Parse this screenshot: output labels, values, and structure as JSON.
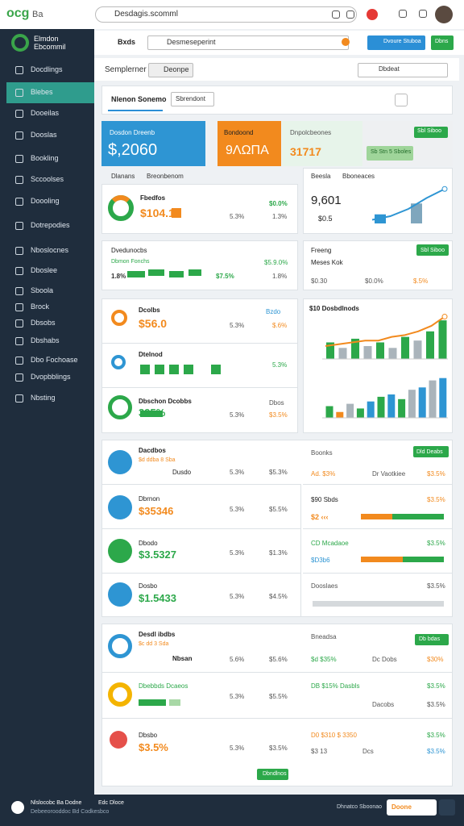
{
  "browser": {
    "logo": "ocg",
    "logo_text": "Ba",
    "url": "Desdagis.scomml"
  },
  "sidebar": {
    "brand": "Elmdon Ebcommil",
    "items": [
      "Docdlings",
      "Blebes",
      "Dooeilas",
      "Dooslas",
      "Bookling",
      "Sccoolses",
      "Doooling",
      "Dotrepodies",
      "Nboslocnes",
      "Dboslee",
      "Sboola",
      "Brock",
      "Dbsobs",
      "Dbshabs",
      "Dbo Fochoase",
      "Dvopbblings",
      "Nbsting"
    ]
  },
  "toolbar": {
    "menu": "Bxds",
    "search": "Desmeseperint",
    "button_blue": "Dvoure Stuboa",
    "button_green": "Dbns"
  },
  "subbar": {
    "title": "Semplerner",
    "button": "Deonpe",
    "search": "Dbdeat"
  },
  "tabs": {
    "active": "Nlenon Sonemo",
    "button": "Sbrendont"
  },
  "kpis": [
    {
      "label": "Dosdon Dreenb",
      "value": "$,2060"
    },
    {
      "label": "Bondoond",
      "value": "9ΛΩΠΑ"
    },
    {
      "label": "Dnpolcbeones",
      "value": "31717"
    },
    {
      "button": "Sbl Siboo",
      "button2": "Sb Stn 5 Sboles"
    }
  ],
  "section1": {
    "left_header": "Dlanans",
    "left_header2": "Breonbenom",
    "right_header": "Beesla",
    "right_header2": "Bboneaces"
  },
  "panel1": {
    "title": "Fbedfos",
    "value": "$104.1",
    "c1": "5.3%",
    "c2": "$0.0%",
    "c3": "1.3%"
  },
  "panel1r": {
    "value": "9,601",
    "sub": "$0.5"
  },
  "panel2": {
    "title": "Dvedunocbs",
    "sub": "Dbmon Fonchs",
    "c1": "$5.9.0%",
    "c2": "1.8%",
    "c3": "$7.5%",
    "c4": "1.8%"
  },
  "panel2r": {
    "title": "Freeng",
    "sub": "Meses Kok",
    "button": "Sbl Siboo",
    "c1": "$0.30",
    "c2": "$0.0%",
    "c3": "$.5%"
  },
  "panel3": {
    "rows": [
      {
        "title": "Dcolbs",
        "value": "$56.0",
        "c1": "5.3%",
        "c2": "$.6%",
        "badge": "Bzdo"
      },
      {
        "title": "Dtelnod",
        "c1": "5.3%"
      },
      {
        "title": "Dbschon Dcobbs",
        "value": "395%",
        "c1": "5.3%",
        "c2": "$3.5%",
        "extra": "Dbos"
      }
    ]
  },
  "panel3r": {
    "title": "$10 Dosbdlnods"
  },
  "panel4": {
    "title": "Dacdbos",
    "sub": "$d ddba 8 Sba",
    "r_title": "Boonks",
    "button": "Dld Deabs",
    "rows": [
      {
        "label": "Dusdo",
        "c1": "5.3%",
        "c2": "$5.3%"
      },
      {
        "title": "Dbrnon",
        "value": "$35346",
        "c1": "5.3%",
        "c2": "$5.5%"
      },
      {
        "title": "Dbodo",
        "value": "$3.5327",
        "c1": "5.3%",
        "c2": "$1.3%"
      },
      {
        "title": "Dosbo",
        "value": "$1.5433",
        "c1": "5.3%",
        "c2": "$4.5%"
      }
    ],
    "right": [
      {
        "a": "Ad. $3%",
        "b": "Dr Vaotkiee",
        "c": "$3.5%"
      },
      {
        "a": "$90 Sbds",
        "b": "$2 ‹‹‹",
        "c": "$3.5%"
      },
      {
        "a": "CD Mcadaoe",
        "b": "$D3b6",
        "c": "$3.5%"
      },
      {
        "a": "Dooslaes",
        "c": "$3.5%"
      }
    ]
  },
  "panel5": {
    "title": "Desdl ibdbs",
    "sub": "$c dd 3 Sda",
    "r_title": "Bneadsa",
    "button": "Db bdas",
    "footer_button": "Dbndlnos",
    "rows": [
      {
        "label": "Nbsan",
        "c1": "5.6%",
        "c2": "$5.6%",
        "a": "$d $35%",
        "b": "Dc Dobs",
        "c": "$30%"
      },
      {
        "title": "Dbebbds Dcaeos",
        "c1": "5.3%",
        "c2": "$5.5%",
        "a": "DB $15% Dasbls",
        "b": "Dacobs",
        "c": "$3.5%",
        "d": "$3.5%"
      },
      {
        "title": "Dbsbo",
        "value": "$3.5%",
        "c1": "5.3%",
        "c2": "$3.5%",
        "a": "D0 $310 $ 3350",
        "b": "$3 13",
        "e": "Dcs",
        "c": "$3.5%",
        "d": "$3.5%"
      }
    ]
  },
  "charts": {
    "a": {
      "bars": [
        10,
        22
      ],
      "line": [
        4,
        8,
        16,
        28,
        38
      ],
      "ylim": [
        0,
        40
      ]
    },
    "b": {
      "bars": [
        18,
        12,
        22,
        14,
        18,
        12,
        24,
        20,
        30,
        42
      ],
      "colors": [
        "#2ca84a",
        "#aab4bb",
        "#2ca84a",
        "#aab4bb",
        "#2ca84a",
        "#aab4bb",
        "#2ca84a",
        "#aab4bb",
        "#2ca84a",
        "#2ca84a"
      ],
      "line": [
        14,
        16,
        18,
        20,
        20,
        24,
        26,
        30,
        36,
        46
      ],
      "ylim": [
        0,
        50
      ]
    },
    "c": {
      "bars": [
        10,
        5,
        12,
        8,
        14,
        18,
        20,
        16,
        24,
        26,
        32,
        34
      ],
      "colors": [
        "#2ca84a",
        "#f28a1e",
        "#aab4bb",
        "#2ca84a",
        "#2e95d3",
        "#2ca84a",
        "#2e95d3",
        "#2ca84a",
        "#aab4bb",
        "#2e95d3",
        "#aab4bb",
        "#2e95d3"
      ],
      "ylim": [
        0,
        40
      ]
    }
  },
  "footer": {
    "left1": "Nlslocobc Ba Dodne",
    "left2": "Debeeorooddoc Bd Codkesbco",
    "mid1": "Edc Dloce",
    "right": "Dhnatco Sboonao",
    "button": "Doone"
  }
}
